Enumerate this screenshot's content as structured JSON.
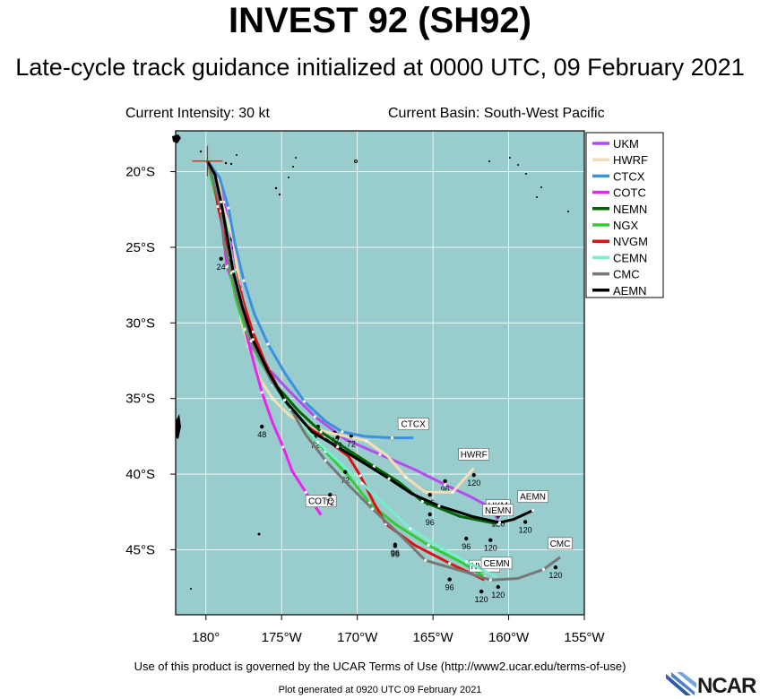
{
  "header": {
    "title": "INVEST 92 (SH92)",
    "subtitle": "Late-cycle track guidance initialized at 0000 UTC, 09 February 2021",
    "intensity": "Current Intensity: 30 kt",
    "basin": "Current Basin: South-West Pacific"
  },
  "footer": {
    "terms": "Use of this product is governed by the UCAR Terms of Use (http://www2.ucar.edu/terms-of-use)",
    "generated": "Plot generated at 0920 UTC  09 February 2021",
    "logo_text": "NCAR"
  },
  "colors": {
    "ocean": "#99cccc",
    "land": "#000000",
    "grid": "#ffffff"
  },
  "chart_data": {
    "type": "line",
    "map": true,
    "xlim": [
      -182,
      -155
    ],
    "ylim": [
      -49.3,
      -17.3
    ],
    "x_ticks": [
      -180,
      -175,
      -170,
      -165,
      -160,
      -155
    ],
    "x_tick_labels": [
      "180°",
      "175°W",
      "170°W",
      "165°W",
      "160°W",
      "155°W"
    ],
    "y_ticks": [
      -20,
      -25,
      -30,
      -35,
      -40,
      -45
    ],
    "y_tick_labels": [
      "20°S",
      "25°S",
      "30°S",
      "35°S",
      "40°S",
      "45°S"
    ],
    "storm_position": [
      -179.9,
      -19.3
    ],
    "legend_position": "top-right",
    "series": [
      {
        "name": "UKM",
        "color": "#b44dee",
        "end_label": "UKM",
        "points": [
          [
            -179.9,
            -19.3
          ],
          [
            -179.4,
            -20.3
          ],
          [
            -178.8,
            -22
          ],
          [
            -178.3,
            -24.7
          ],
          [
            -177.7,
            -27.8
          ],
          [
            -176.9,
            -31.7
          ],
          [
            -175.8,
            -33.1
          ],
          [
            -174.5,
            -34.5
          ],
          [
            -172.8,
            -36.2
          ],
          [
            -170.8,
            -37.7
          ],
          [
            -168.5,
            -38.7
          ],
          [
            -166.2,
            -39.7
          ],
          [
            -164.2,
            -40.7
          ],
          [
            -162.5,
            -41.5
          ],
          [
            -161.2,
            -42.2
          ],
          [
            -160.7,
            -43
          ]
        ],
        "labels": [
          [
            "24",
            -178.3,
            -24.7
          ],
          [
            "72",
            -171.5,
            -37.5
          ],
          [
            "96",
            -164.2,
            -40.7
          ],
          [
            "120",
            -160.7,
            -43
          ]
        ]
      },
      {
        "name": "HWRF",
        "color": "#f5deb3",
        "end_label": "HWRF",
        "points": [
          [
            -179.9,
            -19.3
          ],
          [
            -179.2,
            -20.5
          ],
          [
            -178.9,
            -22.2
          ],
          [
            -178.2,
            -24.5
          ],
          [
            -177.8,
            -27.4
          ],
          [
            -177.7,
            -29.7
          ],
          [
            -177.2,
            -31.5
          ],
          [
            -176.5,
            -33.6
          ],
          [
            -175.6,
            -35
          ],
          [
            -174.5,
            -36.1
          ],
          [
            -173,
            -37
          ],
          [
            -171.2,
            -37.4
          ],
          [
            -169.4,
            -37.8
          ],
          [
            -168,
            -38.8
          ],
          [
            -166.8,
            -40.2
          ],
          [
            -165.5,
            -41.2
          ],
          [
            -163.7,
            -41.2
          ],
          [
            -162.3,
            -39.6
          ]
        ],
        "labels": [
          [
            "72",
            -170.4,
            -37.7
          ],
          [
            "96",
            -165.2,
            -41.6
          ],
          [
            "120",
            -162.3,
            -40.3
          ]
        ]
      },
      {
        "name": "CTCX",
        "color": "#3d8fe0",
        "end_label": "CTCX",
        "points": [
          [
            -179.9,
            -19.3
          ],
          [
            -179.1,
            -20.4
          ],
          [
            -178.5,
            -22.4
          ],
          [
            -178.1,
            -24.7
          ],
          [
            -177.5,
            -27.2
          ],
          [
            -176.8,
            -29.4
          ],
          [
            -175.9,
            -31.4
          ],
          [
            -174.8,
            -33.3
          ],
          [
            -173.5,
            -35.2
          ],
          [
            -172.1,
            -36.5
          ],
          [
            -171,
            -37.2
          ],
          [
            -169.5,
            -37.5
          ],
          [
            -167.7,
            -37.6
          ],
          [
            -166.3,
            -37.6
          ]
        ],
        "labels": [
          [
            "72",
            -172.6,
            -37.1
          ]
        ]
      },
      {
        "name": "COTC",
        "color": "#ee22ee",
        "end_label": "COTC",
        "points": [
          [
            -179.9,
            -19.3
          ],
          [
            -179.6,
            -20.4
          ],
          [
            -179.2,
            -22.1
          ],
          [
            -178.9,
            -23.8
          ],
          [
            -178.6,
            -26.3
          ],
          [
            -177.8,
            -28.5
          ],
          [
            -177.4,
            -30.5
          ],
          [
            -176.9,
            -32.4
          ],
          [
            -176.3,
            -34.6
          ],
          [
            -175.6,
            -36.6
          ],
          [
            -174.9,
            -38.2
          ],
          [
            -174.3,
            -39.8
          ],
          [
            -173.4,
            -41.2
          ],
          [
            -172.4,
            -42.7
          ]
        ],
        "labels": [
          [
            "48",
            -176.3,
            -37.1
          ],
          [
            "24",
            -179.0,
            -26.0
          ]
        ]
      },
      {
        "name": "NEMN",
        "color": "#006400",
        "end_label": "NEMN",
        "points": [
          [
            -179.9,
            -19.3
          ],
          [
            -179.5,
            -20.2
          ],
          [
            -179.2,
            -21.9
          ],
          [
            -178.9,
            -23.5
          ],
          [
            -178.5,
            -25.7
          ],
          [
            -178,
            -27.7
          ],
          [
            -177.1,
            -30.2
          ],
          [
            -176.2,
            -32.4
          ],
          [
            -175.3,
            -34.2
          ],
          [
            -173.9,
            -35.8
          ],
          [
            -172.4,
            -37.2
          ],
          [
            -170.6,
            -38.4
          ],
          [
            -168.9,
            -39.5
          ],
          [
            -167.3,
            -40.5
          ],
          [
            -165.7,
            -41.8
          ],
          [
            -163.2,
            -42.8
          ],
          [
            -160.7,
            -43.3
          ]
        ],
        "labels": [
          [
            "72",
            -171.3,
            -37.8
          ],
          [
            "96",
            -165.2,
            -42.9
          ],
          [
            "120",
            -161.2,
            -44.6
          ]
        ]
      },
      {
        "name": "NGX",
        "color": "#33cc33",
        "end_label": "",
        "points": [
          [
            -179.9,
            -19.3
          ],
          [
            -179.6,
            -20.6
          ],
          [
            -179.1,
            -22.5
          ],
          [
            -178.7,
            -24.6
          ],
          [
            -178.5,
            -26.2
          ],
          [
            -178,
            -28.5
          ],
          [
            -177.4,
            -30.4
          ],
          [
            -176.5,
            -32.4
          ],
          [
            -175.2,
            -34.6
          ],
          [
            -173.8,
            -36.6
          ],
          [
            -172.1,
            -38.5
          ],
          [
            -170.6,
            -40.1
          ],
          [
            -169.2,
            -41.9
          ],
          [
            -167.5,
            -43.3
          ],
          [
            -165.3,
            -44.7
          ],
          [
            -163,
            -45.9
          ],
          [
            -161.6,
            -46.8
          ]
        ],
        "labels": [
          [
            "96",
            -167.5,
            -44.9
          ]
        ]
      },
      {
        "name": "NVGM",
        "color": "#dd1111",
        "end_label": "NVGM",
        "points": [
          [
            -179.9,
            -19.3
          ],
          [
            -179.5,
            -20.5
          ],
          [
            -179.2,
            -22.3
          ],
          [
            -178.7,
            -24.4
          ],
          [
            -178.1,
            -26.5
          ],
          [
            -177.5,
            -28.7
          ],
          [
            -176.9,
            -30.6
          ],
          [
            -176.1,
            -32.6
          ],
          [
            -175,
            -34.8
          ],
          [
            -173.8,
            -36.5
          ],
          [
            -172.2,
            -37.6
          ],
          [
            -170.6,
            -38.8
          ],
          [
            -169.8,
            -40.1
          ],
          [
            -168.9,
            -41.9
          ],
          [
            -168.1,
            -43.3
          ],
          [
            -166.2,
            -44.7
          ],
          [
            -163.9,
            -45.9
          ],
          [
            -161.6,
            -47
          ]
        ],
        "labels": [
          [
            "72",
            -172.8,
            -37.8
          ],
          [
            "120",
            -161.8,
            -48
          ]
        ]
      },
      {
        "name": "CEMN",
        "color": "#77eecc",
        "end_label": "CEMN",
        "points": [
          [
            -179.9,
            -19.3
          ],
          [
            -179.5,
            -20.1
          ],
          [
            -179.1,
            -21.8
          ],
          [
            -178.6,
            -23.7
          ],
          [
            -178.3,
            -25.8
          ],
          [
            -177.8,
            -28
          ],
          [
            -177.2,
            -30.3
          ],
          [
            -176.4,
            -32.4
          ],
          [
            -175.6,
            -34.1
          ],
          [
            -174.3,
            -36
          ],
          [
            -172.6,
            -37.9
          ],
          [
            -171.2,
            -39.2
          ],
          [
            -169.7,
            -40.6
          ],
          [
            -168.1,
            -42.1
          ],
          [
            -166.5,
            -43.6
          ],
          [
            -164.4,
            -44.9
          ],
          [
            -162.8,
            -45.8
          ],
          [
            -160.8,
            -46.8
          ]
        ],
        "labels": [
          [
            "72",
            -170.8,
            -40.1
          ],
          [
            "96",
            -167.5,
            -45.0
          ],
          [
            "120",
            -160.7,
            -47.7
          ]
        ]
      },
      {
        "name": "CMC",
        "color": "#777777",
        "end_label": "CMC",
        "points": [
          [
            -179.9,
            -19.3
          ],
          [
            -179.5,
            -20.6
          ],
          [
            -179,
            -22.6
          ],
          [
            -178.8,
            -24.8
          ],
          [
            -178.3,
            -26.7
          ],
          [
            -177.9,
            -28.4
          ],
          [
            -177,
            -31.2
          ],
          [
            -175.7,
            -33.8
          ],
          [
            -174.4,
            -35.7
          ],
          [
            -173.4,
            -37.4
          ],
          [
            -172.1,
            -39.1
          ],
          [
            -170.5,
            -40.8
          ],
          [
            -169,
            -42.3
          ],
          [
            -167.4,
            -43.8
          ],
          [
            -165.5,
            -45.7
          ],
          [
            -163.1,
            -46.4
          ],
          [
            -161.2,
            -47
          ],
          [
            -159.4,
            -46.9
          ],
          [
            -157.7,
            -46.3
          ],
          [
            -156.6,
            -45.5
          ]
        ],
        "labels": [
          [
            "96",
            -163.9,
            -47.2
          ],
          [
            "120",
            -156.9,
            -46.4
          ]
        ]
      },
      {
        "name": "AEMN",
        "color": "#000000",
        "end_label": "AEMN",
        "points": [
          [
            -179.9,
            -19.3
          ],
          [
            -179.4,
            -20.2
          ],
          [
            -179,
            -22
          ],
          [
            -178.6,
            -24.2
          ],
          [
            -178.2,
            -26.6
          ],
          [
            -177.6,
            -28.9
          ],
          [
            -176.9,
            -31.1
          ],
          [
            -175.9,
            -33.2
          ],
          [
            -174.8,
            -35.1
          ],
          [
            -173,
            -37.2
          ],
          [
            -171.3,
            -38.2
          ],
          [
            -169.5,
            -39.3
          ],
          [
            -167.9,
            -40.3
          ],
          [
            -166.4,
            -41.3
          ],
          [
            -164.6,
            -42.1
          ],
          [
            -162.4,
            -42.8
          ],
          [
            -160.6,
            -43.2
          ],
          [
            -159.7,
            -43
          ],
          [
            -158.4,
            -42.4
          ]
        ],
        "labels": [
          [
            "72",
            -171.8,
            -41.6
          ],
          [
            "96",
            -162.8,
            -44.5
          ],
          [
            "120",
            -158.9,
            -43.4
          ]
        ]
      }
    ]
  }
}
